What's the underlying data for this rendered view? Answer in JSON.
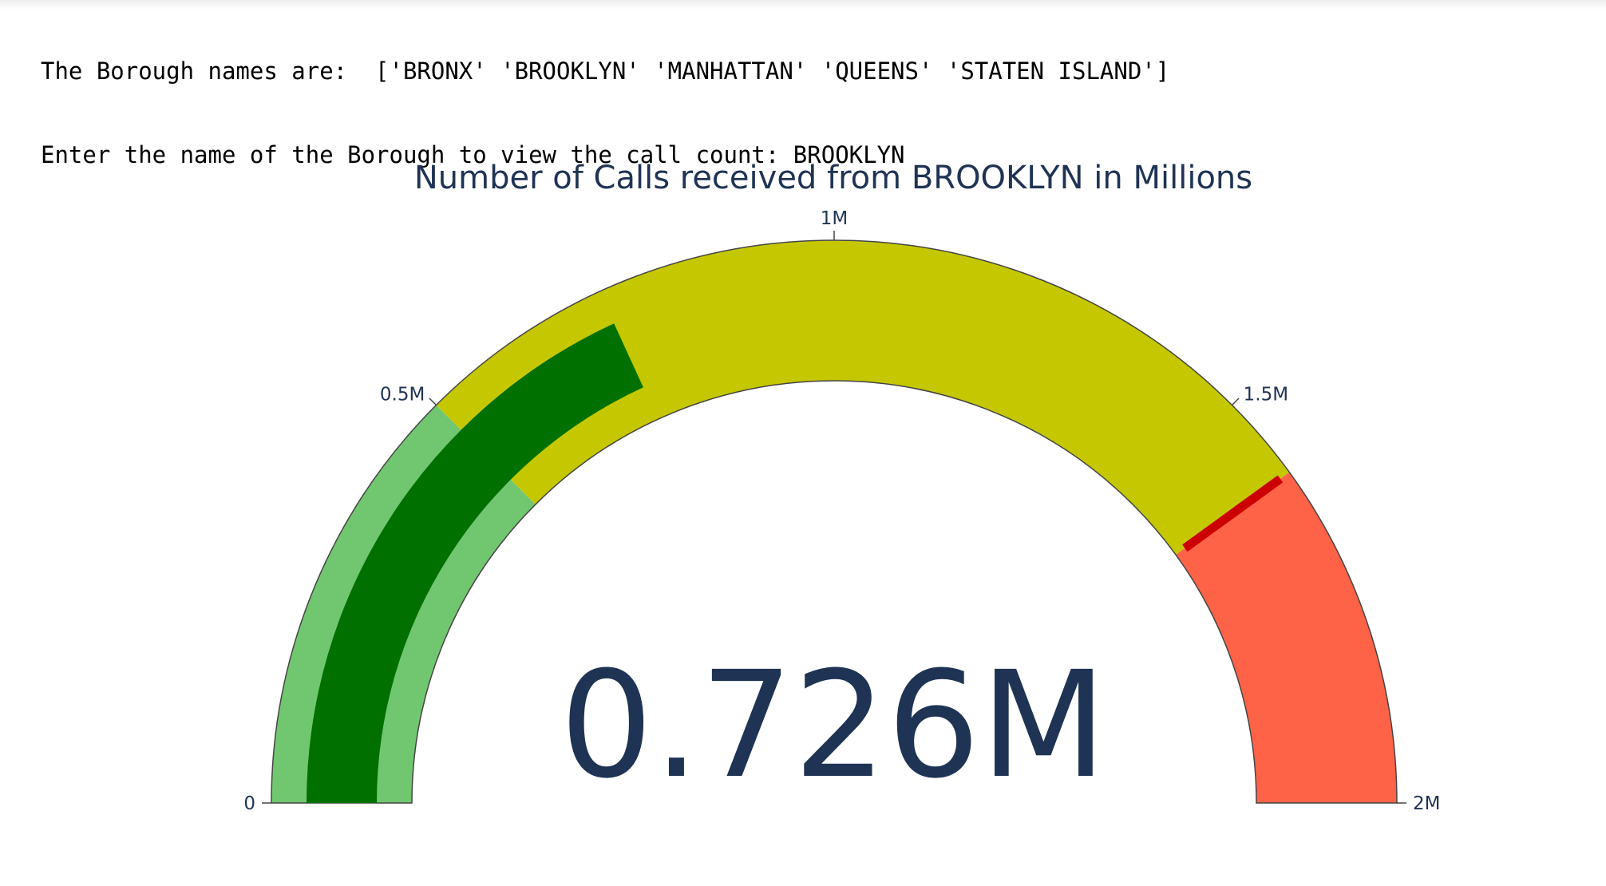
{
  "console": {
    "line1": "The Borough names are:  ['BRONX' 'BROOKLYN' 'MANHATTAN' 'QUEENS' 'STATEN ISLAND']",
    "line2": "Enter the name of the Borough to view the call count: BROOKLYN"
  },
  "chart_data": {
    "type": "gauge",
    "title": "Number of Calls received from BROOKLYN in Millions",
    "value": 0.726,
    "value_label": "0.726M",
    "range": [
      0,
      2
    ],
    "ticks": [
      {
        "value": 0,
        "label": "0"
      },
      {
        "value": 0.5,
        "label": "0.5M"
      },
      {
        "value": 1,
        "label": "1M"
      },
      {
        "value": 1.5,
        "label": "1.5M"
      },
      {
        "value": 2,
        "label": "2M"
      }
    ],
    "bar_color": "#007000",
    "steps": [
      {
        "range": [
          0,
          0.5
        ],
        "color": "#71c770"
      },
      {
        "range": [
          0.5,
          1.6
        ],
        "color": "#c5c800"
      },
      {
        "range": [
          1.6,
          2
        ],
        "color": "#ff6347"
      }
    ],
    "threshold": {
      "value": 1.6,
      "color": "#cc0000"
    }
  }
}
